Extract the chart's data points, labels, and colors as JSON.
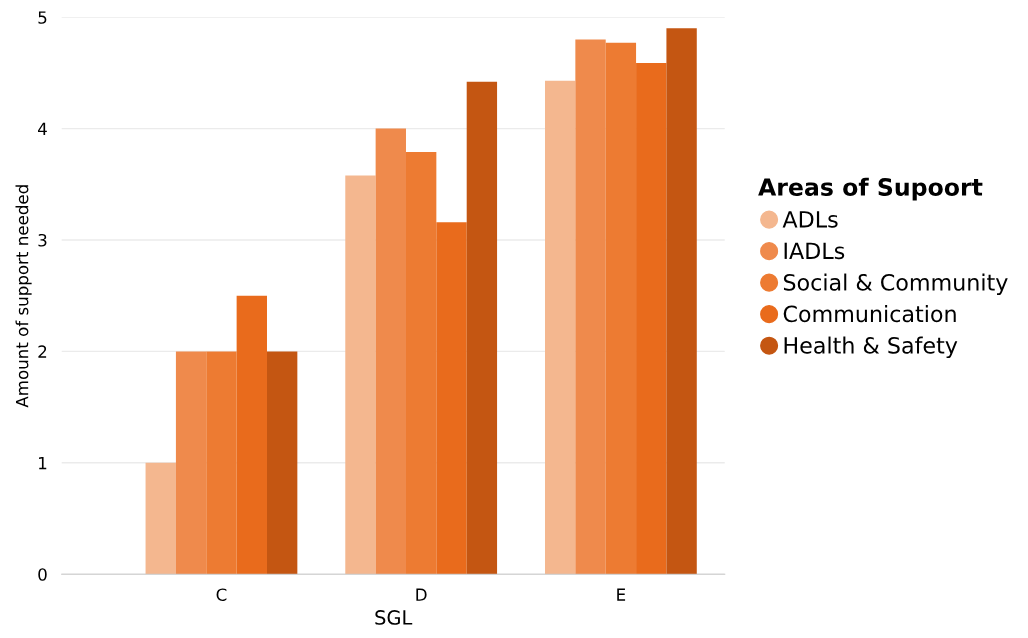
{
  "chart_data": {
    "type": "bar",
    "xlabel": "SGL",
    "ylabel": "Amount of support needed",
    "legend_title": "Areas of Supoort",
    "categories": [
      "C",
      "D",
      "E"
    ],
    "series": [
      {
        "name": "ADLs",
        "color": "#f4b78f",
        "values": [
          1,
          3.58,
          4.43
        ]
      },
      {
        "name": "IADLs",
        "color": "#ef8a4c",
        "values": [
          2,
          4.0,
          4.8
        ]
      },
      {
        "name": "Social & Community",
        "color": "#ed7b32",
        "values": [
          2,
          3.79,
          4.77
        ]
      },
      {
        "name": "Communication",
        "color": "#e96b1c",
        "values": [
          2.5,
          3.16,
          4.59
        ]
      },
      {
        "name": "Health & Safety",
        "color": "#c45612",
        "values": [
          2,
          4.42,
          4.9
        ]
      }
    ],
    "ylim": [
      0,
      5
    ],
    "yticks": [
      0,
      1,
      2,
      3,
      4,
      5
    ],
    "grid": "y",
    "legend": "right",
    "marker": "circle"
  }
}
